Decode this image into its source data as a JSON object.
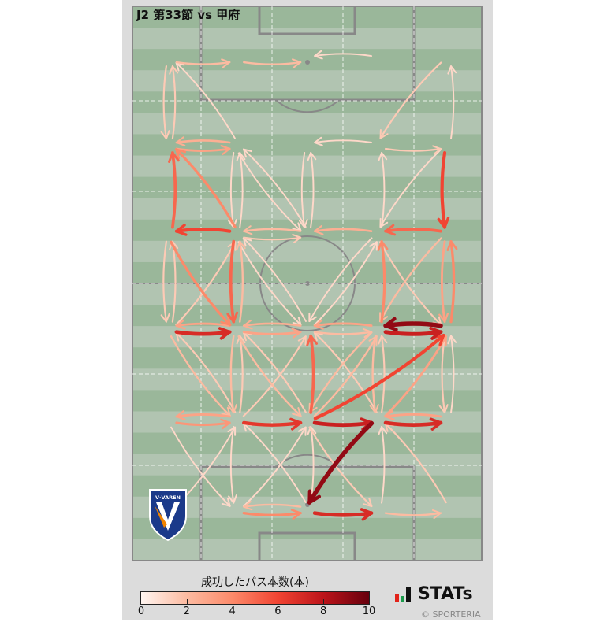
{
  "title": "J2 第33節 vs 甲府",
  "colorbar": {
    "label": "成功したパス本数(本)",
    "ticks": [
      "0",
      "2",
      "4",
      "6",
      "8",
      "10"
    ],
    "colormap": "Reds",
    "range": [
      0,
      10
    ]
  },
  "brand": {
    "name": "STATs",
    "copyright": "© SPORTERIA",
    "colors": {
      "red": "#e2231a",
      "green": "#1a9b4b",
      "dark": "#111111"
    }
  },
  "team_logo": {
    "text": "V·VAREN",
    "colors": {
      "navy": "#1b3a8a",
      "orange": "#f08300"
    }
  },
  "chart_data": {
    "type": "pass-network",
    "pitch": {
      "width_m": 68,
      "length_m": 105,
      "stripe_dark": "#9ab79a",
      "stripe_light": "#b1c4b1",
      "line": "#888888"
    },
    "value_label": "成功したパス本数(本)",
    "vmin": 0,
    "vmax": 10,
    "columns_m": [
      7.2,
      20.3,
      34.1,
      47.9,
      61.4
    ],
    "rows_m": [
      10.0,
      26.4,
      43.2,
      61.1,
      78.3,
      95.4
    ],
    "passes": [
      [
        "C0R0",
        "C1R0",
        2
      ],
      [
        "C1R0",
        "C2R0",
        2
      ],
      [
        "C3R0",
        "C2R0",
        1
      ],
      [
        "C0R0",
        "C0R1",
        1.5
      ],
      [
        "C0R1",
        "C0R0",
        1.5
      ],
      [
        "C1R1",
        "C0R0",
        1
      ],
      [
        "C4R0",
        "C3R1",
        1.5
      ],
      [
        "C4R1",
        "C4R0",
        1
      ],
      [
        "C0R1",
        "C1R1",
        3
      ],
      [
        "C1R1",
        "C0R1",
        2.5
      ],
      [
        "C3R1",
        "C2R1",
        1
      ],
      [
        "C3R1",
        "C4R1",
        1.5
      ],
      [
        "C0R2",
        "C0R1",
        5
      ],
      [
        "C4R1",
        "C4R2",
        6
      ],
      [
        "C1R2",
        "C0R1",
        4
      ],
      [
        "C1R1",
        "C1R2",
        1
      ],
      [
        "C1R2",
        "C1R1",
        1
      ],
      [
        "C1R1",
        "C2R2",
        1
      ],
      [
        "C2R1",
        "C2R2",
        1
      ],
      [
        "C2R2",
        "C2R1",
        1
      ],
      [
        "C3R2",
        "C3R1",
        1
      ],
      [
        "C4R1",
        "C3R2",
        1
      ],
      [
        "C2R2",
        "C1R1",
        1
      ],
      [
        "C1R2",
        "C0R2",
        6
      ],
      [
        "C4R2",
        "C3R2",
        5
      ],
      [
        "C2R2",
        "C1R2",
        2
      ],
      [
        "C1R2",
        "C2R2",
        1.5
      ],
      [
        "C3R2",
        "C2R2",
        2.5
      ],
      [
        "C0R2",
        "C0R3",
        1.5
      ],
      [
        "C0R3",
        "C0R2",
        1.5
      ],
      [
        "C0R2",
        "C1R3",
        4
      ],
      [
        "C1R2",
        "C1R3",
        5
      ],
      [
        "C1R3",
        "C1R2",
        2
      ],
      [
        "C3R3",
        "C3R2",
        4
      ],
      [
        "C4R2",
        "C4R3",
        3
      ],
      [
        "C4R3",
        "C4R2",
        4
      ],
      [
        "C4R2",
        "C3R3",
        2
      ],
      [
        "C3R2",
        "C4R3",
        1.5
      ],
      [
        "C1R2",
        "C2R3",
        1
      ],
      [
        "C3R2",
        "C2R3",
        1
      ],
      [
        "C2R3",
        "C1R2",
        1
      ],
      [
        "C0R3",
        "C1R2",
        1.5
      ],
      [
        "C2R3",
        "C3R2",
        1
      ],
      [
        "C0R3",
        "C1R3",
        7
      ],
      [
        "C1R3",
        "C0R3",
        3
      ],
      [
        "C1R3",
        "C2R3",
        3
      ],
      [
        "C2R3",
        "C1R3",
        2.5
      ],
      [
        "C3R3",
        "C2R3",
        3
      ],
      [
        "C2R3",
        "C3R3",
        2
      ],
      [
        "C3R3",
        "C4R3",
        7.5
      ],
      [
        "C4R3",
        "C3R3",
        9
      ],
      [
        "C0R3",
        "C1R4",
        2
      ],
      [
        "C1R4",
        "C0R3",
        1.5
      ],
      [
        "C1R3",
        "C1R4",
        2
      ],
      [
        "C1R4",
        "C1R3",
        1.5
      ],
      [
        "C2R4",
        "C2R3",
        5
      ],
      [
        "C3R3",
        "C3R4",
        2
      ],
      [
        "C3R4",
        "C3R3",
        1.5
      ],
      [
        "C4R3",
        "C4R4",
        1.5
      ],
      [
        "C4R4",
        "C4R3",
        1
      ],
      [
        "C2R4",
        "C4R3",
        6
      ],
      [
        "C3R4",
        "C4R3",
        3
      ],
      [
        "C1R3",
        "C2R4",
        2
      ],
      [
        "C3R3",
        "C2R4",
        2
      ],
      [
        "C2R4",
        "C1R3",
        1.5
      ],
      [
        "C2R4",
        "C3R3",
        2
      ],
      [
        "C1R4",
        "C2R3",
        1.5
      ],
      [
        "C3R4",
        "C2R3",
        1.5
      ],
      [
        "C0R4",
        "C1R4",
        3.5
      ],
      [
        "C1R4",
        "C0R4",
        3
      ],
      [
        "C1R4",
        "C2R4",
        6.5
      ],
      [
        "C2R4",
        "C3R4",
        7.5
      ],
      [
        "C3R4",
        "C4R4",
        7
      ],
      [
        "C4R4",
        "C3R4",
        3
      ],
      [
        "C3R4",
        "C2R5",
        9
      ],
      [
        "C0R5",
        "C1R4",
        1
      ],
      [
        "C1R4",
        "C1R5",
        1
      ],
      [
        "C2R5",
        "C1R4",
        1
      ],
      [
        "C2R4",
        "C3R5",
        1.5
      ],
      [
        "C3R5",
        "C3R4",
        1
      ],
      [
        "C4R5",
        "C3R4",
        1.5
      ],
      [
        "C1R5",
        "C2R4",
        1
      ],
      [
        "C2R5",
        "C2R4",
        1
      ],
      [
        "C1R5",
        "C2R5",
        4
      ],
      [
        "C2R5",
        "C1R5",
        2
      ],
      [
        "C2R5",
        "C3R5",
        7
      ],
      [
        "C3R5",
        "C4R5",
        2
      ],
      [
        "C0R4",
        "C1R5",
        1
      ]
    ]
  }
}
